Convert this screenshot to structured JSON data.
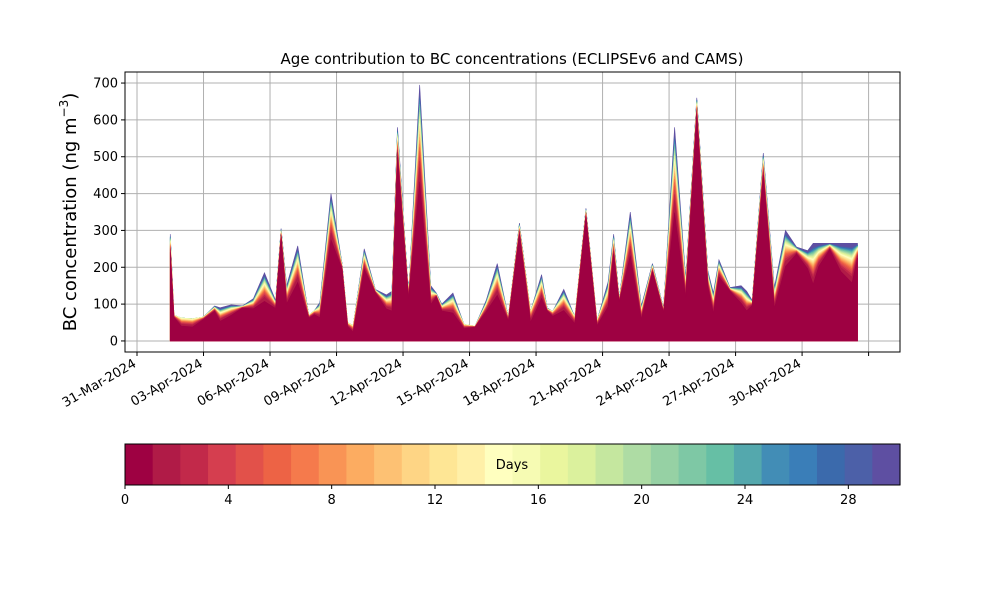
{
  "chart_data": {
    "type": "area",
    "stacked": true,
    "title": "Age contribution to BC concentrations (ECLIPSEv6 and CAMS)",
    "ylabel": "BC concentration (ng m",
    "ylabel_sup": "−3",
    "ylabel_close": ")",
    "ylim": [
      -30,
      730
    ],
    "yticks": [
      0,
      100,
      200,
      300,
      400,
      500,
      600,
      700
    ],
    "xlim": [
      "2024-03-30T11:00",
      "2024-05-04T10:00"
    ],
    "xticks": [
      "2024-03-31",
      "2024-04-03",
      "2024-04-06",
      "2024-04-09",
      "2024-04-12",
      "2024-04-15",
      "2024-04-18",
      "2024-04-21",
      "2024-04-24",
      "2024-04-27",
      "2024-04-30",
      "2024-05-03"
    ],
    "xtick_labels": [
      "31-Mar-2024",
      "03-Apr-2024",
      "06-Apr-2024",
      "09-Apr-2024",
      "12-Apr-2024",
      "15-Apr-2024",
      "18-Apr-2024",
      "21-Apr-2024",
      "24-Apr-2024",
      "27-Apr-2024",
      "30-Apr-2024",
      ""
    ],
    "grid": true,
    "total_series": {
      "x": [
        "2024-04-01T12:00",
        "2024-04-01T16:00",
        "2024-04-02T00:00",
        "2024-04-02T12:00",
        "2024-04-03T00:00",
        "2024-04-03T12:00",
        "2024-04-03T18:00",
        "2024-04-04T06:00",
        "2024-04-04T18:00",
        "2024-04-05T06:00",
        "2024-04-05T18:00",
        "2024-04-06T06:00",
        "2024-04-06T12:00",
        "2024-04-06T18:00",
        "2024-04-07T06:00",
        "2024-04-07T18:00",
        "2024-04-08T00:00",
        "2024-04-08T06:00",
        "2024-04-08T18:00",
        "2024-04-09T06:00",
        "2024-04-09T12:00",
        "2024-04-09T18:00",
        "2024-04-10T06:00",
        "2024-04-10T18:00",
        "2024-04-11T06:00",
        "2024-04-11T12:00",
        "2024-04-11T18:00",
        "2024-04-12T06:00",
        "2024-04-12T18:00",
        "2024-04-13T06:00",
        "2024-04-13T12:00",
        "2024-04-13T18:00",
        "2024-04-14T06:00",
        "2024-04-14T18:00",
        "2024-04-15T06:00",
        "2024-04-15T18:00",
        "2024-04-16T06:00",
        "2024-04-16T18:00",
        "2024-04-17T06:00",
        "2024-04-17T18:00",
        "2024-04-18T06:00",
        "2024-04-18T12:00",
        "2024-04-18T18:00",
        "2024-04-19T06:00",
        "2024-04-19T18:00",
        "2024-04-20T06:00",
        "2024-04-20T18:00",
        "2024-04-21T06:00",
        "2024-04-21T12:00",
        "2024-04-21T18:00",
        "2024-04-22T06:00",
        "2024-04-22T18:00",
        "2024-04-23T06:00",
        "2024-04-23T18:00",
        "2024-04-24T06:00",
        "2024-04-24T18:00",
        "2024-04-25T06:00",
        "2024-04-25T18:00",
        "2024-04-26T00:00",
        "2024-04-26T06:00",
        "2024-04-26T18:00",
        "2024-04-27T06:00",
        "2024-04-27T12:00",
        "2024-04-27T18:00",
        "2024-04-28T06:00",
        "2024-04-28T18:00",
        "2024-04-29T06:00",
        "2024-04-29T18:00",
        "2024-04-30T06:00",
        "2024-04-30T12:00",
        "2024-04-30T18:00",
        "2024-05-01T06:00",
        "2024-05-01T18:00",
        "2024-05-02T06:00",
        "2024-05-02T12:00"
      ],
      "values": [
        290,
        70,
        62,
        60,
        65,
        95,
        90,
        98,
        95,
        115,
        185,
        110,
        305,
        150,
        258,
        70,
        82,
        105,
        400,
        210,
        50,
        42,
        250,
        140,
        125,
        135,
        580,
        130,
        695,
        150,
        130,
        100,
        130,
        45,
        40,
        110,
        210,
        65,
        320,
        80,
        180,
        90,
        80,
        140,
        65,
        360,
        55,
        160,
        290,
        115,
        350,
        95,
        210,
        90,
        580,
        170,
        660,
        190,
        130,
        220,
        145,
        150,
        135,
        110,
        510,
        145,
        300,
        255,
        245,
        265,
        265,
        265,
        265,
        265,
        265
      ]
    },
    "colorbar": {
      "label": "Days",
      "min": 0,
      "max": 30,
      "ticks": [
        0,
        4,
        8,
        12,
        16,
        20,
        24,
        28
      ],
      "colors": [
        "#9e0142",
        "#b01b47",
        "#c2294a",
        "#d53e4f",
        "#e2514a",
        "#ed6345",
        "#f57a4c",
        "#f99455",
        "#fcac61",
        "#fdc173",
        "#fed585",
        "#fee695",
        "#fff0a8",
        "#ffffbf",
        "#f6fbb3",
        "#eaf69e",
        "#dbf19d",
        "#c5e79f",
        "#aedca4",
        "#96d1a4",
        "#7ec8a5",
        "#66bfa5",
        "#54a8ad",
        "#428db6",
        "#3a7eb8",
        "#3b6aac",
        "#4c60a8",
        "#5e4fa2"
      ]
    }
  }
}
